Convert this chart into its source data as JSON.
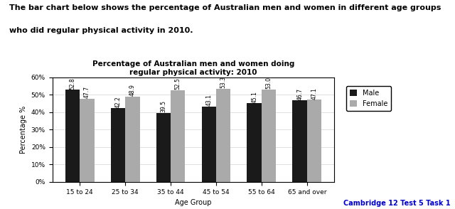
{
  "title_line1": "Percentage of Australian men and women doing",
  "title_line2": "regular physical activity: 2010",
  "header_text_line1": "The bar chart below shows the percentage of Australian men and women in different age groups",
  "header_text_line2": "who did regular physical activity in 2010.",
  "categories": [
    "15 to 24",
    "25 to 34",
    "35 to 44",
    "45 to 54",
    "55 to 64",
    "65 and over"
  ],
  "male_values": [
    52.8,
    42.2,
    39.5,
    43.1,
    45.1,
    46.7
  ],
  "female_values": [
    47.7,
    48.9,
    52.5,
    53.3,
    53.0,
    47.1
  ],
  "male_color": "#1a1a1a",
  "female_color": "#aaaaaa",
  "xlabel": "Age Group",
  "ylabel": "Percentage %",
  "ylim": [
    0,
    60
  ],
  "yticks": [
    0,
    10,
    20,
    30,
    40,
    50,
    60
  ],
  "ytick_labels": [
    "0%",
    "10%",
    "20%",
    "30%",
    "40%",
    "50%",
    "60%"
  ],
  "legend_male": "Male",
  "legend_female": "Female",
  "bar_width": 0.32,
  "annotation_fontsize": 5.5,
  "cambridge_text": "Cambridge 12 Test 5 Task 1",
  "cambridge_color": "#0000cc",
  "header_fontsize": 8.0,
  "title_fontsize": 7.5,
  "axis_fontsize": 7.0,
  "tick_fontsize": 6.5
}
